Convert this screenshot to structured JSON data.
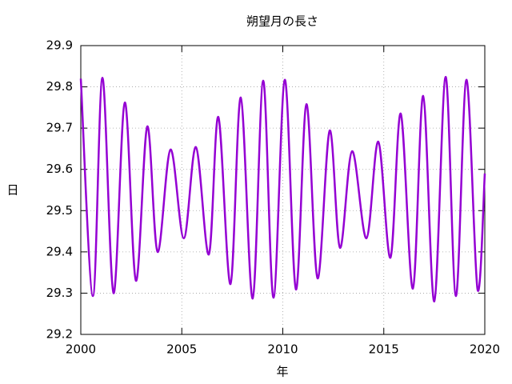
{
  "chart_data": {
    "type": "line",
    "title": "朔望月の長さ",
    "x_label": "年",
    "y_label": "日",
    "x": [
      2000.0,
      2000.6,
      2001.07,
      2001.62,
      2002.18,
      2002.73,
      2003.29,
      2003.8,
      2004.44,
      2005.1,
      2005.7,
      2006.34,
      2006.81,
      2007.41,
      2007.92,
      2008.51,
      2009.03,
      2009.54,
      2010.1,
      2010.65,
      2011.17,
      2011.72,
      2012.32,
      2012.83,
      2013.43,
      2014.14,
      2014.73,
      2015.33,
      2015.84,
      2016.44,
      2016.95,
      2017.5,
      2018.06,
      2018.57,
      2019.09,
      2019.64,
      2020.0
    ],
    "series": [
      {
        "color": "#9400d3",
        "values": [
          29.82,
          29.293,
          29.822,
          29.3,
          29.762,
          29.33,
          29.704,
          29.4,
          29.648,
          29.433,
          29.654,
          29.394,
          29.727,
          29.322,
          29.774,
          29.287,
          29.815,
          29.289,
          29.817,
          29.309,
          29.758,
          29.336,
          29.694,
          29.41,
          29.644,
          29.433,
          29.667,
          29.386,
          29.735,
          29.311,
          29.778,
          29.28,
          29.824,
          29.293,
          29.817,
          29.309,
          29.59
        ]
      }
    ],
    "xlim": [
      2000,
      2020
    ],
    "xticks": [
      2000,
      2005,
      2010,
      2015,
      2020
    ],
    "ylim": [
      29.2,
      29.9
    ],
    "yticks": [
      29.2,
      29.3,
      29.4,
      29.5,
      29.6,
      29.7,
      29.8,
      29.9
    ],
    "grid": true
  }
}
